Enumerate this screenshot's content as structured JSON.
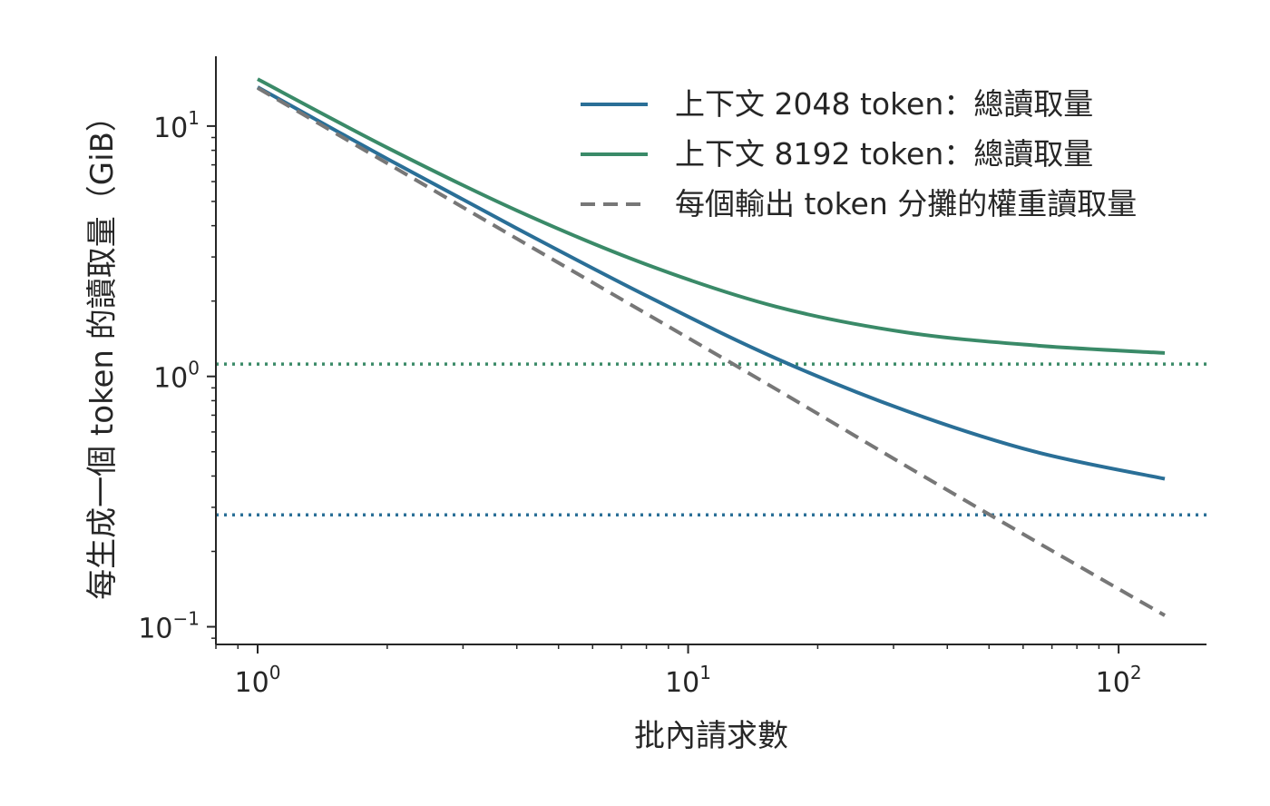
{
  "chart_data": {
    "type": "line",
    "title": "",
    "xlabel": "批內請求數",
    "ylabel": "每生成一個 token 的讀取量（GiB）",
    "x_scale": "log",
    "y_scale": "log",
    "xlim": [
      0.8,
      160
    ],
    "ylim": [
      0.085,
      19
    ],
    "x_ticks": [
      {
        "value": 1,
        "base": "10",
        "exp": "0"
      },
      {
        "value": 10,
        "base": "10",
        "exp": "1"
      },
      {
        "value": 100,
        "base": "10",
        "exp": "2"
      }
    ],
    "y_ticks": [
      {
        "value": 0.1,
        "base": "10",
        "exp": "−1"
      },
      {
        "value": 1,
        "base": "10",
        "exp": "0"
      },
      {
        "value": 10,
        "base": "10",
        "exp": "1"
      }
    ],
    "grid": false,
    "legend_position": "top-right",
    "x": [
      1,
      2,
      4,
      8,
      16,
      32,
      64,
      128
    ],
    "series": [
      {
        "name": "上下文 2048 token：總讀取量",
        "style": "solid",
        "color": "#2a6f97",
        "values": [
          14.3,
          7.4,
          3.9,
          2.1,
          1.18,
          0.73,
          0.5,
          0.39
        ]
      },
      {
        "name": "上下文 8192 token：總讀取量",
        "style": "solid",
        "color": "#3a8a68",
        "values": [
          15.4,
          8.2,
          4.6,
          2.8,
          1.9,
          1.5,
          1.33,
          1.24
        ]
      },
      {
        "name": "每個輸出 token 分攤的權重讀取量",
        "style": "dashed",
        "color": "#777777",
        "values": [
          14.2,
          7.1,
          3.55,
          1.78,
          0.89,
          0.44,
          0.22,
          0.111
        ]
      }
    ],
    "reference_lines": [
      {
        "orientation": "horizontal",
        "value": 1.12,
        "style": "dotted",
        "color": "#3a8a68"
      },
      {
        "orientation": "horizontal",
        "value": 0.28,
        "style": "dotted",
        "color": "#2a6f97"
      }
    ]
  }
}
